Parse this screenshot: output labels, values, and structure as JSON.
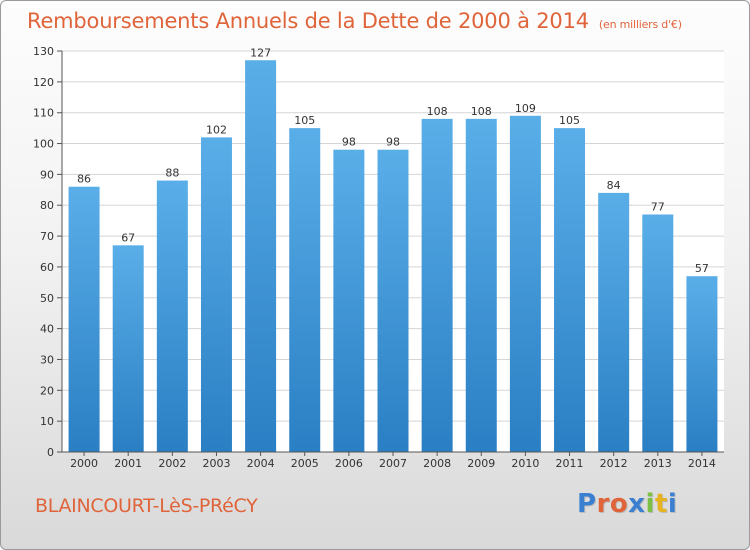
{
  "header": {
    "title": "Remboursements Annuels de la Dette de 2000 à 2014",
    "unit_note": "(en milliers d'€)"
  },
  "footer": {
    "town": "BLAINCOURT-LèS-PRéCY",
    "logo_letters": [
      "P",
      "r",
      "o",
      "x",
      "i",
      "t",
      "i"
    ],
    "logo_colors": [
      "#3b7fd1",
      "#e0643a",
      "#e0643a",
      "#3b7fd1",
      "#7bc043",
      "#e8b321",
      "#3b7fd1"
    ]
  },
  "chart_data": {
    "type": "bar",
    "categories": [
      "2000",
      "2001",
      "2002",
      "2003",
      "2004",
      "2005",
      "2006",
      "2007",
      "2008",
      "2009",
      "2010",
      "2011",
      "2012",
      "2013",
      "2014"
    ],
    "values": [
      86,
      67,
      88,
      102,
      127,
      105,
      98,
      98,
      108,
      108,
      109,
      105,
      84,
      77,
      57
    ],
    "ylim": [
      0,
      130
    ],
    "yticks": [
      0,
      10,
      20,
      30,
      40,
      50,
      60,
      70,
      80,
      90,
      100,
      110,
      120,
      130
    ],
    "grid": true,
    "bar_color_top": "#5aaee8",
    "bar_color_bottom": "#2a7fc4",
    "grid_color": "#d5d5d5"
  }
}
